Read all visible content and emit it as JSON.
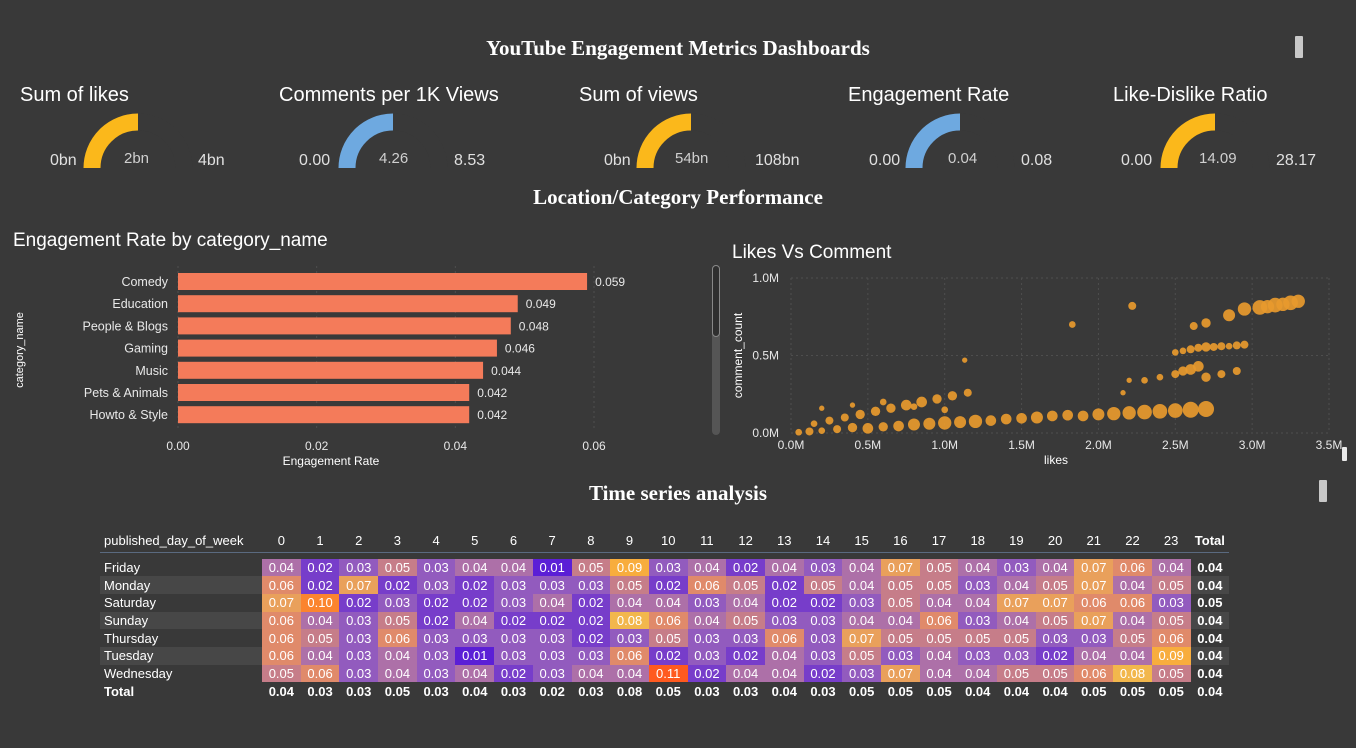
{
  "header": {
    "title": "YouTube Engagement Metrics Dashboards"
  },
  "kpis": [
    {
      "title": "Sum of likes",
      "min": "0bn",
      "value": "2bn",
      "max": "4bn",
      "fraction": 0.5,
      "color": "#fbb81b"
    },
    {
      "title": "Comments per 1K Views",
      "min": "0.00",
      "value": "4.26",
      "max": "8.53",
      "fraction": 0.5,
      "color": "#6ea9e0"
    },
    {
      "title": "Sum of views",
      "min": "0bn",
      "value": "54bn",
      "max": "108bn",
      "fraction": 0.5,
      "color": "#fbb81b"
    },
    {
      "title": "Engagement Rate",
      "min": "0.00",
      "value": "0.04",
      "max": "0.08",
      "fraction": 0.5,
      "color": "#6ea9e0"
    },
    {
      "title": "Like-Dislike Ratio",
      "min": "0.00",
      "value": "14.09",
      "max": "28.17",
      "fraction": 0.5,
      "color": "#fbb81b"
    }
  ],
  "section2": {
    "title": "Location/Category Performance"
  },
  "bar_chart": {
    "title": "Engagement Rate by category_name",
    "chart_data": {
      "type": "bar",
      "orientation": "horizontal",
      "categories": [
        "Comedy",
        "Education",
        "People & Blogs",
        "Gaming",
        "Music",
        "Pets & Animals",
        "Howto & Style"
      ],
      "values": [
        0.059,
        0.049,
        0.048,
        0.046,
        0.044,
        0.042,
        0.042
      ],
      "labels": [
        "0.059",
        "0.049",
        "0.048",
        "0.046",
        "0.044",
        "0.042",
        "0.042"
      ],
      "xlabel": "Engagement Rate",
      "ylabel": "category_name",
      "xlim": [
        0,
        0.06
      ],
      "xticks": [
        "0.00",
        "0.02",
        "0.04",
        "0.06"
      ],
      "color": "#f47b5a"
    }
  },
  "scatter_chart": {
    "title": "Likes Vs Comment",
    "chart_data": {
      "type": "scatter",
      "xlabel": "likes",
      "ylabel": "comment_count",
      "xlim": [
        0,
        3500000
      ],
      "ylim": [
        0,
        1000000
      ],
      "xticks": [
        "0.0M",
        "0.5M",
        "1.0M",
        "1.5M",
        "2.0M",
        "2.5M",
        "3.0M",
        "3.5M"
      ],
      "yticks": [
        "0.0M",
        "0.5M",
        "1.0M"
      ],
      "color": "#e89a2e",
      "points": [
        [
          50000,
          5000,
          5
        ],
        [
          120000,
          10000,
          6
        ],
        [
          200000,
          15000,
          5
        ],
        [
          300000,
          25000,
          6
        ],
        [
          400000,
          35000,
          7
        ],
        [
          500000,
          30000,
          8
        ],
        [
          600000,
          40000,
          7
        ],
        [
          700000,
          45000,
          8
        ],
        [
          800000,
          55000,
          9
        ],
        [
          900000,
          60000,
          9
        ],
        [
          1000000,
          65000,
          10
        ],
        [
          1100000,
          70000,
          9
        ],
        [
          1200000,
          75000,
          10
        ],
        [
          1300000,
          80000,
          8
        ],
        [
          1400000,
          90000,
          8
        ],
        [
          1500000,
          95000,
          8
        ],
        [
          1600000,
          100000,
          9
        ],
        [
          1700000,
          110000,
          8
        ],
        [
          1800000,
          115000,
          8
        ],
        [
          1900000,
          110000,
          8
        ],
        [
          2000000,
          120000,
          9
        ],
        [
          2100000,
          125000,
          10
        ],
        [
          2200000,
          130000,
          10
        ],
        [
          2300000,
          135000,
          11
        ],
        [
          2400000,
          140000,
          11
        ],
        [
          2500000,
          145000,
          11
        ],
        [
          2600000,
          150000,
          12
        ],
        [
          2700000,
          155000,
          12
        ],
        [
          150000,
          60000,
          5
        ],
        [
          250000,
          80000,
          6
        ],
        [
          350000,
          100000,
          6
        ],
        [
          450000,
          120000,
          7
        ],
        [
          550000,
          140000,
          7
        ],
        [
          650000,
          160000,
          7
        ],
        [
          750000,
          180000,
          8
        ],
        [
          850000,
          200000,
          8
        ],
        [
          950000,
          220000,
          7
        ],
        [
          1050000,
          240000,
          7
        ],
        [
          1150000,
          260000,
          6
        ],
        [
          200000,
          160000,
          4
        ],
        [
          400000,
          180000,
          4
        ],
        [
          600000,
          200000,
          5
        ],
        [
          800000,
          170000,
          5
        ],
        [
          1000000,
          150000,
          5
        ],
        [
          1130000,
          470000,
          4
        ],
        [
          1830000,
          700000,
          5
        ],
        [
          2160000,
          260000,
          4
        ],
        [
          2200000,
          340000,
          4
        ],
        [
          2220000,
          820000,
          6
        ],
        [
          2300000,
          340000,
          5
        ],
        [
          2400000,
          360000,
          5
        ],
        [
          2500000,
          380000,
          6
        ],
        [
          2550000,
          400000,
          7
        ],
        [
          2600000,
          410000,
          8
        ],
        [
          2650000,
          430000,
          8
        ],
        [
          2700000,
          360000,
          7
        ],
        [
          2800000,
          380000,
          6
        ],
        [
          2900000,
          400000,
          6
        ],
        [
          2500000,
          520000,
          5
        ],
        [
          2550000,
          530000,
          5
        ],
        [
          2600000,
          540000,
          6
        ],
        [
          2650000,
          550000,
          6
        ],
        [
          2700000,
          555000,
          7
        ],
        [
          2750000,
          555000,
          6
        ],
        [
          2800000,
          560000,
          6
        ],
        [
          2850000,
          560000,
          5
        ],
        [
          2900000,
          565000,
          6
        ],
        [
          2950000,
          570000,
          6
        ],
        [
          2620000,
          690000,
          6
        ],
        [
          2700000,
          710000,
          7
        ],
        [
          2850000,
          760000,
          9
        ],
        [
          2950000,
          800000,
          10
        ],
        [
          3050000,
          810000,
          11
        ],
        [
          3150000,
          825000,
          11
        ],
        [
          3250000,
          840000,
          11
        ],
        [
          3300000,
          850000,
          10
        ],
        [
          3200000,
          830000,
          10
        ],
        [
          3100000,
          815000,
          10
        ]
      ]
    }
  },
  "section3": {
    "title": "Time series analysis"
  },
  "heatmap": {
    "row_header": "published_day_of_week",
    "total_label": "Total",
    "chart_data": {
      "type": "heatmap",
      "columns": [
        "0",
        "1",
        "2",
        "3",
        "4",
        "5",
        "6",
        "7",
        "8",
        "9",
        "10",
        "11",
        "12",
        "13",
        "14",
        "15",
        "16",
        "17",
        "18",
        "19",
        "20",
        "21",
        "22",
        "23"
      ],
      "rows": [
        {
          "label": "Friday",
          "values": [
            "0.04",
            "0.02",
            "0.03",
            "0.05",
            "0.03",
            "0.04",
            "0.04",
            "0.01",
            "0.05",
            "0.09",
            "0.03",
            "0.04",
            "0.02",
            "0.04",
            "0.03",
            "0.04",
            "0.07",
            "0.05",
            "0.04",
            "0.03",
            "0.04",
            "0.07",
            "0.06",
            "0.04"
          ],
          "total": "0.04"
        },
        {
          "label": "Monday",
          "values": [
            "0.06",
            "0.02",
            "0.07",
            "0.02",
            "0.03",
            "0.02",
            "0.03",
            "0.03",
            "0.03",
            "0.05",
            "0.02",
            "0.06",
            "0.05",
            "0.02",
            "0.05",
            "0.04",
            "0.05",
            "0.05",
            "0.03",
            "0.04",
            "0.05",
            "0.07",
            "0.04",
            "0.05"
          ],
          "total": "0.04"
        },
        {
          "label": "Saturday",
          "values": [
            "0.07",
            "0.10",
            "0.02",
            "0.03",
            "0.02",
            "0.02",
            "0.03",
            "0.04",
            "0.02",
            "0.04",
            "0.04",
            "0.03",
            "0.04",
            "0.02",
            "0.02",
            "0.03",
            "0.05",
            "0.04",
            "0.04",
            "0.07",
            "0.07",
            "0.06",
            "0.06",
            "0.03"
          ],
          "total": "0.05"
        },
        {
          "label": "Sunday",
          "values": [
            "0.06",
            "0.04",
            "0.03",
            "0.05",
            "0.02",
            "0.04",
            "0.02",
            "0.02",
            "0.02",
            "0.08",
            "0.06",
            "0.04",
            "0.05",
            "0.03",
            "0.03",
            "0.04",
            "0.04",
            "0.06",
            "0.03",
            "0.04",
            "0.05",
            "0.07",
            "0.04",
            "0.05"
          ],
          "total": "0.04"
        },
        {
          "label": "Thursday",
          "values": [
            "0.06",
            "0.05",
            "0.03",
            "0.06",
            "0.03",
            "0.03",
            "0.03",
            "0.03",
            "0.02",
            "0.03",
            "0.05",
            "0.03",
            "0.03",
            "0.06",
            "0.03",
            "0.07",
            "0.05",
            "0.05",
            "0.05",
            "0.05",
            "0.03",
            "0.03",
            "0.05",
            "0.06"
          ],
          "total": "0.04"
        },
        {
          "label": "Tuesday",
          "values": [
            "0.06",
            "0.04",
            "0.03",
            "0.04",
            "0.03",
            "0.01",
            "0.03",
            "0.03",
            "0.03",
            "0.06",
            "0.02",
            "0.03",
            "0.02",
            "0.04",
            "0.03",
            "0.05",
            "0.03",
            "0.04",
            "0.03",
            "0.03",
            "0.02",
            "0.04",
            "0.04",
            "0.09"
          ],
          "total": "0.04"
        },
        {
          "label": "Wednesday",
          "values": [
            "0.05",
            "0.06",
            "0.03",
            "0.04",
            "0.03",
            "0.04",
            "0.02",
            "0.03",
            "0.04",
            "0.04",
            "0.11",
            "0.02",
            "0.04",
            "0.04",
            "0.02",
            "0.03",
            "0.07",
            "0.04",
            "0.04",
            "0.05",
            "0.05",
            "0.06",
            "0.08",
            "0.05"
          ],
          "total": "0.04"
        }
      ],
      "totals": [
        "0.04",
        "0.03",
        "0.03",
        "0.05",
        "0.03",
        "0.04",
        "0.03",
        "0.02",
        "0.03",
        "0.08",
        "0.05",
        "0.03",
        "0.03",
        "0.04",
        "0.03",
        "0.05",
        "0.05",
        "0.05",
        "0.04",
        "0.04",
        "0.04",
        "0.05",
        "0.05",
        "0.05"
      ],
      "grand_total": "0.04",
      "color_scale": [
        "#5b1fd6",
        "#a06ab8",
        "#e08a6a",
        "#f6c244",
        "#ff5a1f"
      ]
    }
  }
}
